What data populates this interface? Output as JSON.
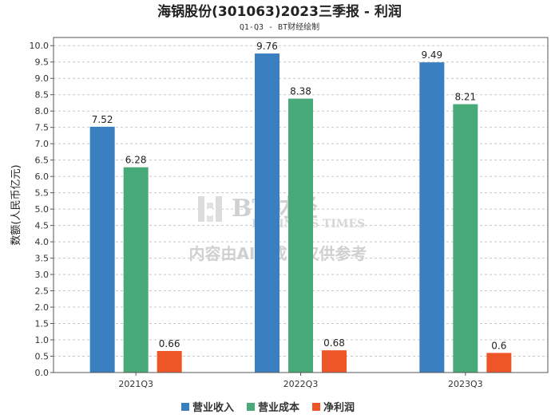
{
  "chart_data": {
    "type": "bar",
    "title": "海锅股份(301063)2023三季报 - 利润",
    "subtitle": "Q1-Q3 - BT财经绘制",
    "ylabel": "数额(人民币亿元)",
    "xlabel": "",
    "ylim": [
      0,
      10.25
    ],
    "ytick_step": 0.5,
    "grid": true,
    "legend_position": "bottom",
    "categories": [
      "2021Q3",
      "2022Q3",
      "2023Q3"
    ],
    "series": [
      {
        "name": "营业收入",
        "color": "#3a7fc0",
        "values": [
          7.52,
          9.76,
          9.49
        ]
      },
      {
        "name": "营业成本",
        "color": "#48aa78",
        "values": [
          6.28,
          8.38,
          8.21
        ]
      },
      {
        "name": "净利润",
        "color": "#ee5527",
        "values": [
          0.66,
          0.68,
          0.6
        ]
      }
    ]
  },
  "watermark": {
    "brand": "BT财经",
    "brand_en": "BUSINESS TIMES",
    "disclaimer": "内容由AI生成，仅供参考"
  }
}
